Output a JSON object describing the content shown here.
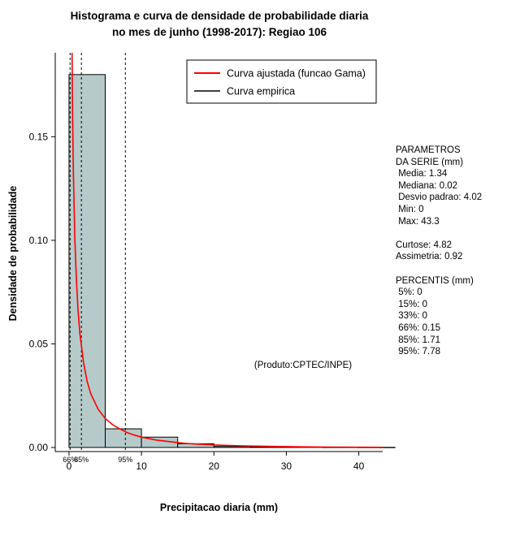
{
  "title": {
    "line1": "Histograma e curva de densidade de probabilidade diaria",
    "line2": "no mes de junho (1998-2017): Regiao 106"
  },
  "chart_data": {
    "type": "bar",
    "subtype": "histogram_with_fitted_density_curve",
    "title": "Histograma e curva de densidade de probabilidade diaria no mes de junho (1998-2017): Regiao 106",
    "xlabel": "Precipitacao diaria (mm)",
    "ylabel": "Densidade de probabilidade",
    "xlim": [
      -1.9,
      43.3
    ],
    "ylim": [
      0,
      0.19
    ],
    "x_ticks": [
      0,
      10,
      20,
      30,
      40
    ],
    "x_tick_labels": [
      "0",
      "10",
      "20",
      "30",
      "40"
    ],
    "y_ticks": [
      0,
      0.05,
      0.1,
      0.15
    ],
    "y_tick_labels": [
      "0.00",
      "0.05",
      "0.10",
      "0.15"
    ],
    "grid": false,
    "legend_position": "top-right-inside",
    "histogram": {
      "bin_start": 0,
      "bin_width": 5,
      "densities": [
        0.18,
        0.009,
        0.005,
        0.0018,
        0.0005,
        0.0003,
        0.00017,
        0.0001,
        7e-05
      ],
      "fill": "#b6caca",
      "stroke": "#000000"
    },
    "gamma_curve": {
      "color": "#ff0000",
      "points": [
        [
          0.02,
          2.0
        ],
        [
          0.05,
          1.1
        ],
        [
          0.1,
          0.68
        ],
        [
          0.15,
          0.48
        ],
        [
          0.2,
          0.37
        ],
        [
          0.3,
          0.26
        ],
        [
          0.4,
          0.2
        ],
        [
          0.5,
          0.158
        ],
        [
          0.6,
          0.133
        ],
        [
          0.8,
          0.101
        ],
        [
          1,
          0.082
        ],
        [
          1.25,
          0.066
        ],
        [
          1.5,
          0.055
        ],
        [
          2,
          0.041
        ],
        [
          2.5,
          0.032
        ],
        [
          3,
          0.026
        ],
        [
          4,
          0.0186
        ],
        [
          5,
          0.014
        ],
        [
          6,
          0.011
        ],
        [
          7,
          0.009
        ],
        [
          8,
          0.0072
        ],
        [
          9,
          0.006
        ],
        [
          10,
          0.005
        ],
        [
          12,
          0.0036
        ],
        [
          14,
          0.0028
        ],
        [
          16,
          0.002
        ],
        [
          18,
          0.0016
        ],
        [
          20,
          0.0012
        ],
        [
          24,
          0.0008
        ],
        [
          28,
          0.0005
        ],
        [
          32,
          0.00032
        ],
        [
          36,
          0.0002
        ],
        [
          40,
          0.00013
        ],
        [
          43.3,
          9e-05
        ]
      ]
    },
    "percentile_lines": [
      {
        "label": "66%",
        "x": 0.15
      },
      {
        "label": "85%",
        "x": 1.71
      },
      {
        "label": "95%",
        "x": 7.78
      }
    ],
    "legend": [
      {
        "label": "Curva ajustada (funcao Gama)",
        "color": "#ff0000"
      },
      {
        "label": "Curva empirica",
        "color": "#000000"
      }
    ],
    "annotation": "(Produto:CPTEC/INPE)"
  },
  "stats_panel": {
    "lines": [
      "PARAMETROS",
      "DA SERIE (mm)",
      " Media: 1.34",
      " Mediana: 0.02",
      " Desvio padrao: 4.02",
      " Min: 0",
      " Max: 43.3",
      "",
      "Curtose: 4.82",
      "Assimetria: 0.92",
      "",
      "PERCENTIS (mm)",
      " 5%: 0",
      " 15%: 0",
      " 33%: 0",
      " 66%: 0.15",
      " 85%: 1.71",
      " 95%: 7.78"
    ]
  }
}
